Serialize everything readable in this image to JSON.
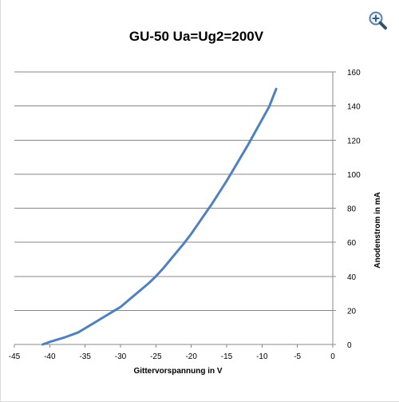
{
  "chart_data": {
    "type": "line",
    "title": "GU-50 Ua=Ug2=200V",
    "xlabel": "Gittervorspannung in V",
    "ylabel": "Anodenstrom in mA",
    "xlim": [
      -45,
      0
    ],
    "ylim": [
      0,
      160
    ],
    "x_ticks": [
      -45,
      -40,
      -35,
      -30,
      -25,
      -20,
      -15,
      -10,
      -5,
      0
    ],
    "y_ticks": [
      0,
      20,
      40,
      60,
      80,
      100,
      120,
      140,
      160
    ],
    "y_axis_position": "right",
    "grid": "horizontal",
    "legend": "none",
    "series": [
      {
        "color": "#4f81bd",
        "x": [
          -41,
          -40,
          -38,
          -36,
          -35,
          -34,
          -33,
          -32,
          -31,
          -30,
          -29,
          -28,
          -27,
          -26,
          -25,
          -24,
          -23,
          -22,
          -21,
          -20,
          -19,
          -18,
          -17,
          -16,
          -15,
          -14,
          -13,
          -12,
          -11,
          -10,
          -9,
          -8
        ],
        "y": [
          0,
          1.5,
          4,
          7,
          9.5,
          12,
          14.5,
          17,
          19.5,
          22,
          25.5,
          29,
          32.5,
          36,
          40,
          44.5,
          49.5,
          54.5,
          59.5,
          65,
          71,
          77,
          83,
          89.5,
          96,
          103,
          110,
          117,
          124.5,
          132,
          139.5,
          150
        ]
      }
    ]
  },
  "ui": {
    "zoom_icon": "magnifier-plus-icon"
  }
}
